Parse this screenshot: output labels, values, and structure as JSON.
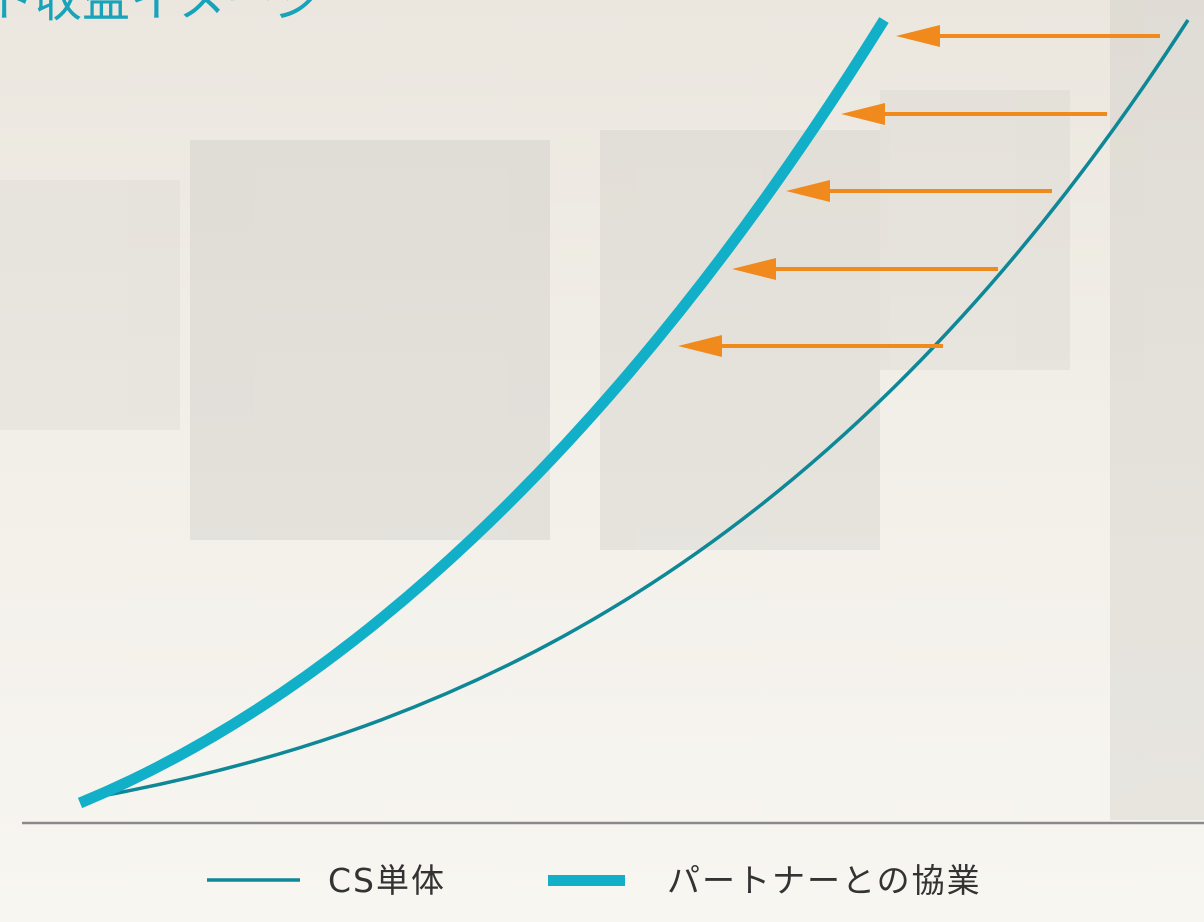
{
  "header": {
    "title": "ト収益イメージ"
  },
  "legend": {
    "items": [
      "CS単体",
      "パートナーとの協業"
    ]
  }
}
